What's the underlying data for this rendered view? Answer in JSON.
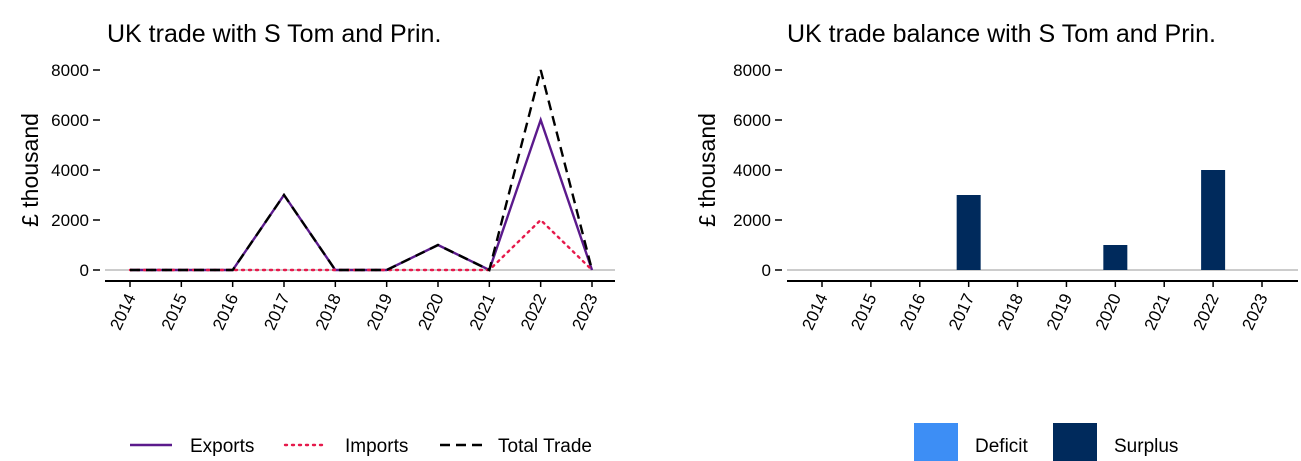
{
  "chart_data": [
    {
      "type": "line",
      "title": "UK trade with S Tom and Prin.",
      "xlabel": "",
      "ylabel": "£ thousand",
      "x": [
        "2014",
        "2015",
        "2016",
        "2017",
        "2018",
        "2019",
        "2020",
        "2021",
        "2022",
        "2023"
      ],
      "ylim": [
        0,
        8000
      ],
      "yticks": [
        0,
        2000,
        4000,
        6000,
        8000
      ],
      "grid": false,
      "legend_position": "bottom",
      "series": [
        {
          "name": "Exports",
          "color": "#5b1a8c",
          "dash": "solid",
          "values": [
            0,
            0,
            0,
            3000,
            0,
            0,
            1000,
            0,
            6000,
            0
          ]
        },
        {
          "name": "Imports",
          "color": "#e6194b",
          "dash": "dotted",
          "values": [
            0,
            0,
            0,
            0,
            0,
            0,
            0,
            0,
            2000,
            0
          ]
        },
        {
          "name": "Total Trade",
          "color": "#000000",
          "dash": "dashed",
          "values": [
            0,
            0,
            0,
            3000,
            0,
            0,
            1000,
            0,
            8000,
            0
          ]
        }
      ]
    },
    {
      "type": "bar",
      "title": "UK trade balance with S Tom and Prin.",
      "xlabel": "",
      "ylabel": "£ thousand",
      "categories": [
        "2014",
        "2015",
        "2016",
        "2017",
        "2018",
        "2019",
        "2020",
        "2021",
        "2022",
        "2023"
      ],
      "ylim": [
        0,
        8000
      ],
      "yticks": [
        0,
        2000,
        4000,
        6000,
        8000
      ],
      "grid": false,
      "legend_position": "bottom",
      "series": [
        {
          "name": "Deficit",
          "color": "#3d8ef5",
          "values": [
            0,
            0,
            0,
            0,
            0,
            0,
            0,
            0,
            0,
            0
          ]
        },
        {
          "name": "Surplus",
          "color": "#002a5c",
          "values": [
            0,
            0,
            0,
            3000,
            0,
            0,
            1000,
            0,
            4000,
            0
          ]
        }
      ]
    }
  ]
}
